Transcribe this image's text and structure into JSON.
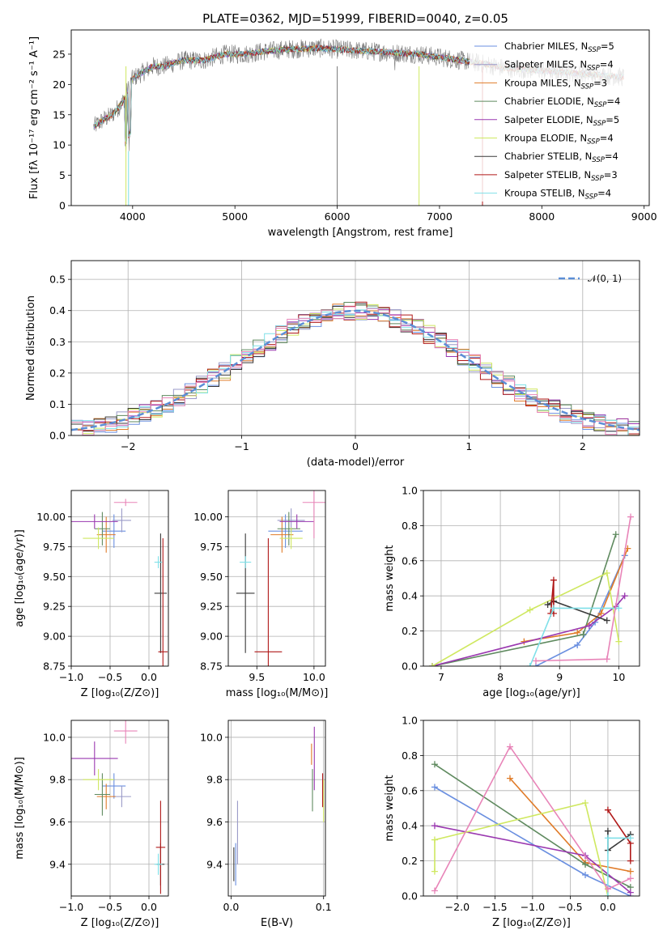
{
  "colors": [
    "#6a8fe0",
    "#9a9ac8",
    "#e07b28",
    "#5f8a5f",
    "#9a38b0",
    "#cfe860",
    "#3a3a3a",
    "#b01818",
    "#7fe0e8",
    "#e884b8"
  ],
  "chart_data": [
    {
      "id": "spectrum",
      "type": "line",
      "title": "PLATE=0362, MJD=51999, FIBERID=0040, z=0.05",
      "xlabel": "wavelength [Angstrom, rest frame]",
      "ylabel": "Flux [fλ 10⁻¹⁷ erg cm⁻² s⁻¹ A⁻¹]",
      "xlim": [
        3400,
        9050
      ],
      "ylim": [
        0,
        29
      ],
      "xticks": [
        4000,
        5000,
        6000,
        7000,
        8000,
        9000
      ],
      "yticks": [
        0,
        5,
        10,
        15,
        20,
        25
      ],
      "legend_position": "upper right",
      "series": [
        {
          "name": "Chabrier MILES, N_SSP=5",
          "color": "#6a8fe0"
        },
        {
          "name": "Salpeter MILES, N_SSP=4",
          "color": "#9a9ac8"
        },
        {
          "name": "Kroupa MILES, N_SSP=3",
          "color": "#e07b28"
        },
        {
          "name": "Chabrier ELODIE, N_SSP=4",
          "color": "#5f8a5f"
        },
        {
          "name": "Salpeter ELODIE, N_SSP=5",
          "color": "#9a38b0"
        },
        {
          "name": "Kroupa ELODIE, N_SSP=4",
          "color": "#cfe860"
        },
        {
          "name": "Chabrier STELIB, N_SSP=4",
          "color": "#3a3a3a"
        },
        {
          "name": "Salpeter STELIB, N_SSP=3",
          "color": "#b01818"
        },
        {
          "name": "Kroupa STELIB, N_SSP=4",
          "color": "#7fe0e8"
        }
      ],
      "data_curve": {
        "x": [
          3620,
          3700,
          3800,
          3900,
          4000,
          4100,
          4200,
          4300,
          4500,
          4700,
          4900,
          5100,
          5300,
          5500,
          5800,
          6000,
          6300,
          6500,
          6800,
          7000,
          7200,
          7400,
          7600,
          7800,
          8000,
          8200,
          8400,
          8600,
          8800
        ],
        "y": [
          13,
          14,
          15,
          17,
          21,
          22,
          23,
          23,
          24,
          24,
          25,
          25,
          25.5,
          25.8,
          26,
          25.8,
          25.5,
          25.3,
          25,
          24.5,
          24,
          23.5,
          22.8,
          22.5,
          22.3,
          22,
          21.8,
          21.5,
          21.2
        ]
      }
    },
    {
      "id": "residuals",
      "type": "line",
      "xlabel": "(data-model)/error",
      "ylabel": "Normed distribution",
      "xlim": [
        -2.5,
        2.5
      ],
      "ylim": [
        0,
        0.56
      ],
      "xticks": [
        -2,
        -1,
        0,
        1,
        2
      ],
      "yticks": [
        0.0,
        0.1,
        0.2,
        0.3,
        0.4,
        0.5
      ],
      "legend": "𝒩(0, 1)",
      "grid": true
    },
    {
      "id": "age-vs-Z",
      "type": "scatter",
      "xlabel": "Z [log₁₀(Z/Z⊙)]",
      "ylabel": "age  [log₁₀(age/yr)]",
      "xlim": [
        -1.0,
        0.25
      ],
      "ylim": [
        8.75,
        10.22
      ],
      "xticks": [
        -1.0,
        -0.5,
        0.0
      ],
      "yticks": [
        8.75,
        9.0,
        9.25,
        9.5,
        9.75,
        10.0
      ],
      "points": [
        {
          "x": -0.45,
          "y": 9.88,
          "xerr": 0.15,
          "yerr": 0.14
        },
        {
          "x": -0.35,
          "y": 9.97,
          "xerr": 0.12,
          "yerr": 0.1
        },
        {
          "x": -0.55,
          "y": 9.85,
          "xerr": 0.12,
          "yerr": 0.15
        },
        {
          "x": -0.6,
          "y": 9.9,
          "xerr": 0.1,
          "yerr": 0.14
        },
        {
          "x": -0.7,
          "y": 9.96,
          "xerr": 0.3,
          "yerr": 0.06
        },
        {
          "x": -0.65,
          "y": 9.82,
          "xerr": 0.2,
          "yerr": 0.09
        },
        {
          "x": 0.15,
          "y": 9.36,
          "xerr": 0.08,
          "yerr": 0.5
        },
        {
          "x": 0.18,
          "y": 8.87,
          "xerr": 0.06,
          "yerr": 0.95
        },
        {
          "x": 0.12,
          "y": 9.62,
          "xerr": 0.05,
          "yerr": 0.05
        },
        {
          "x": -0.3,
          "y": 10.12,
          "xerr": 0.15,
          "yerr": 0.03
        }
      ]
    },
    {
      "id": "age-vs-mass",
      "type": "scatter",
      "xlabel": "mass [log₁₀(M/M⊙)]",
      "xlim": [
        9.25,
        10.1
      ],
      "ylim": [
        8.75,
        10.22
      ],
      "xticks": [
        9.5,
        10.0
      ],
      "yticks": [
        8.75,
        9.0,
        9.25,
        9.5,
        9.75,
        10.0
      ],
      "points": [
        {
          "x": 9.75,
          "y": 9.88,
          "xerr": 0.15,
          "yerr": 0.14
        },
        {
          "x": 9.8,
          "y": 9.97,
          "xerr": 0.12,
          "yerr": 0.1
        },
        {
          "x": 9.72,
          "y": 9.85,
          "xerr": 0.1,
          "yerr": 0.15
        },
        {
          "x": 9.78,
          "y": 9.9,
          "xerr": 0.1,
          "yerr": 0.14
        },
        {
          "x": 9.85,
          "y": 9.96,
          "xerr": 0.15,
          "yerr": 0.06
        },
        {
          "x": 9.8,
          "y": 9.82,
          "xerr": 0.1,
          "yerr": 0.09
        },
        {
          "x": 9.4,
          "y": 9.36,
          "xerr": 0.08,
          "yerr": 0.5
        },
        {
          "x": 9.6,
          "y": 8.87,
          "xerr": 0.12,
          "yerr": 0.95
        },
        {
          "x": 9.4,
          "y": 9.62,
          "xerr": 0.05,
          "yerr": 0.05
        },
        {
          "x": 10.0,
          "y": 10.12,
          "xerr": 0.1,
          "yerr": 0.3
        }
      ]
    },
    {
      "id": "massweight-vs-age",
      "type": "line",
      "xlabel": "age  [log₁₀(age/yr)]",
      "ylabel": "mass weight",
      "xlim": [
        6.7,
        10.35
      ],
      "ylim": [
        0,
        1
      ],
      "xticks": [
        7,
        8,
        9,
        10
      ],
      "yticks": [
        0.0,
        0.2,
        0.4,
        0.6,
        0.8,
        1.0
      ],
      "series": [
        {
          "color": "#6a8fe0",
          "x": [
            8.6,
            9.3,
            9.6,
            10.1
          ],
          "y": [
            0.0,
            0.12,
            0.25,
            0.63
          ]
        },
        {
          "color": "#e07b28",
          "x": [
            8.4,
            9.3,
            9.7,
            10.15
          ],
          "y": [
            0.14,
            0.19,
            0.3,
            0.67
          ]
        },
        {
          "color": "#5f8a5f",
          "x": [
            6.85,
            9.4,
            9.95
          ],
          "y": [
            0.0,
            0.18,
            0.75
          ]
        },
        {
          "color": "#9a38b0",
          "x": [
            6.85,
            9.5,
            9.95,
            10.1
          ],
          "y": [
            0.0,
            0.23,
            0.34,
            0.4
          ]
        },
        {
          "color": "#cfe860",
          "x": [
            6.85,
            8.5,
            9.8,
            10.0
          ],
          "y": [
            0.0,
            0.32,
            0.53,
            0.14
          ]
        },
        {
          "color": "#3a3a3a",
          "x": [
            8.8,
            8.9,
            9.8
          ],
          "y": [
            0.35,
            0.37,
            0.26
          ]
        },
        {
          "color": "#b01818",
          "x": [
            8.85,
            8.9,
            8.9
          ],
          "y": [
            0.3,
            0.49,
            0.3
          ]
        },
        {
          "color": "#7fe0e8",
          "x": [
            8.5,
            8.9,
            10.0
          ],
          "y": [
            0.0,
            0.33,
            0.33
          ]
        },
        {
          "color": "#e884b8",
          "x": [
            8.6,
            9.8,
            10.2
          ],
          "y": [
            0.03,
            0.04,
            0.85
          ]
        }
      ]
    },
    {
      "id": "mass-vs-Z",
      "type": "scatter",
      "xlabel": "Z [log₁₀(Z/Z⊙)]",
      "ylabel": "mass [log₁₀(M/M⊙)]",
      "xlim": [
        -1.0,
        0.25
      ],
      "ylim": [
        9.25,
        10.08
      ],
      "xticks": [
        -1.0,
        -0.5,
        0.0
      ],
      "yticks": [
        9.4,
        9.6,
        9.8,
        10.0
      ],
      "points": [
        {
          "x": -0.45,
          "y": 9.77,
          "xerr": 0.15,
          "yerr": 0.06
        },
        {
          "x": -0.35,
          "y": 9.72,
          "xerr": 0.12,
          "yerr": 0.05
        },
        {
          "x": -0.55,
          "y": 9.72,
          "xerr": 0.12,
          "yerr": 0.06
        },
        {
          "x": -0.6,
          "y": 9.73,
          "xerr": 0.1,
          "yerr": 0.1
        },
        {
          "x": -0.7,
          "y": 9.9,
          "xerr": 0.3,
          "yerr": 0.08
        },
        {
          "x": -0.65,
          "y": 9.8,
          "xerr": 0.2,
          "yerr": 0.05
        },
        {
          "x": 0.15,
          "y": 9.4,
          "xerr": 0.05,
          "yerr": 0.1
        },
        {
          "x": 0.15,
          "y": 9.48,
          "xerr": 0.06,
          "yerr": 0.22
        },
        {
          "x": 0.12,
          "y": 9.4,
          "xerr": 0.05,
          "yerr": 0.05
        },
        {
          "x": -0.3,
          "y": 10.03,
          "xerr": 0.15,
          "yerr": 0.06
        }
      ]
    },
    {
      "id": "mass-vs-EBV",
      "type": "scatter",
      "xlabel": "E(B-V)",
      "xlim": [
        -0.003,
        0.102
      ],
      "ylim": [
        9.25,
        10.08
      ],
      "xticks": [
        0.0,
        0.1
      ],
      "yticks": [
        9.4,
        9.6,
        9.8,
        10.0
      ],
      "points": [
        {
          "x": 0.005,
          "y": 9.4,
          "yerr": 0.1
        },
        {
          "x": 0.007,
          "y": 9.55,
          "yerr": 0.15
        },
        {
          "x": 0.087,
          "y": 9.92,
          "yerr": 0.05
        },
        {
          "x": 0.088,
          "y": 9.75,
          "yerr": 0.1
        },
        {
          "x": 0.09,
          "y": 9.9,
          "yerr": 0.15
        },
        {
          "x": 0.1,
          "y": 9.7,
          "yerr": 0.1
        },
        {
          "x": 0.003,
          "y": 9.4,
          "yerr": 0.08
        },
        {
          "x": 0.099,
          "y": 9.75,
          "yerr": 0.08
        }
      ]
    },
    {
      "id": "massweight-vs-Z",
      "type": "line",
      "xlabel": "Z [log₁₀(Z/Z⊙)]",
      "ylabel": "mass weight",
      "xlim": [
        -2.45,
        0.42
      ],
      "ylim": [
        0,
        1
      ],
      "xticks": [
        -2.0,
        -1.5,
        -1.0,
        -0.5,
        0.0
      ],
      "yticks": [
        0.0,
        0.2,
        0.4,
        0.6,
        0.8,
        1.0
      ],
      "series": [
        {
          "color": "#6a8fe0",
          "x": [
            -2.3,
            -0.3,
            0.3
          ],
          "y": [
            0.62,
            0.12,
            0.0
          ]
        },
        {
          "color": "#e07b28",
          "x": [
            -1.3,
            -0.3,
            0.3
          ],
          "y": [
            0.67,
            0.19,
            0.14
          ]
        },
        {
          "color": "#5f8a5f",
          "x": [
            -2.3,
            -0.3,
            0.3
          ],
          "y": [
            0.75,
            0.18,
            0.05
          ]
        },
        {
          "color": "#9a38b0",
          "x": [
            -2.3,
            -0.3,
            0.3
          ],
          "y": [
            0.4,
            0.23,
            0.02
          ]
        },
        {
          "color": "#cfe860",
          "x": [
            -2.3,
            -2.3,
            -0.3,
            0.0
          ],
          "y": [
            0.14,
            0.32,
            0.53,
            0.0
          ]
        },
        {
          "color": "#3a3a3a",
          "x": [
            0.0,
            0.0,
            0.3
          ],
          "y": [
            0.37,
            0.26,
            0.35
          ]
        },
        {
          "color": "#b01818",
          "x": [
            0.0,
            0.3,
            0.3
          ],
          "y": [
            0.49,
            0.3,
            0.2
          ]
        },
        {
          "color": "#7fe0e8",
          "x": [
            0.0,
            0.0,
            0.3
          ],
          "y": [
            0.0,
            0.33,
            0.33
          ]
        },
        {
          "color": "#e884b8",
          "x": [
            -2.3,
            -1.3,
            0.0,
            0.3
          ],
          "y": [
            0.03,
            0.85,
            0.04,
            0.1
          ]
        }
      ]
    }
  ]
}
